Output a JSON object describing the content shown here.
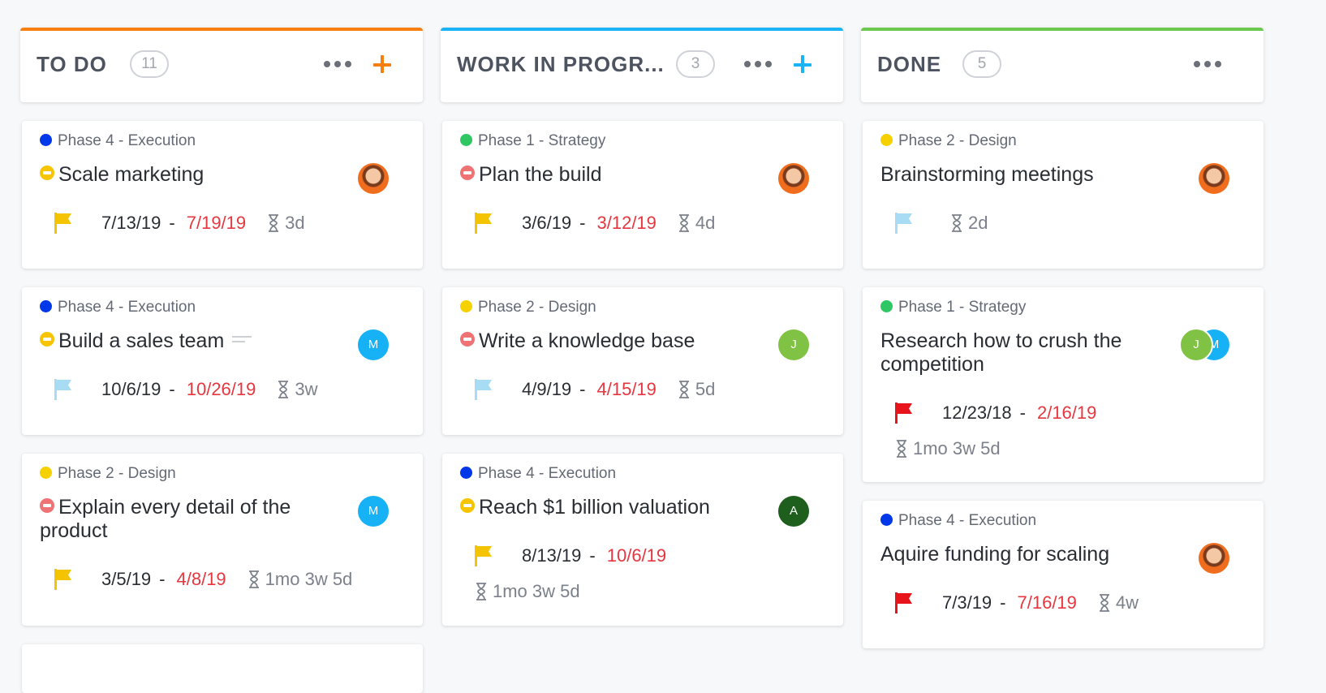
{
  "colors": {
    "todo_accent": "#f77f0f",
    "wip_accent": "#1ab3f5",
    "done_accent": "#6bc950",
    "overdue": "#e5373f"
  },
  "columns": [
    {
      "title": "TO DO",
      "count": "11",
      "accent": "#f77f0f",
      "has_add": true,
      "cards": [
        {
          "phase": "Phase 4 - Execution",
          "phase_color": "#0037e8",
          "status_color": "#f7c500",
          "title": "Scale marketing",
          "avatar": "photo",
          "flag_color": "#f4c402",
          "start": "7/13/19",
          "dash": "-",
          "due": "7/19/19",
          "estimate": "3d"
        },
        {
          "phase": "Phase 4 - Execution",
          "phase_color": "#0037e8",
          "status_color": "#f7c500",
          "title": "Build a sales team",
          "has_description": true,
          "avatar": "M",
          "avatar_color": "#17b2f5",
          "flag_color": "#a8dcf5",
          "start": "10/6/19",
          "dash": "-",
          "due": "10/26/19",
          "estimate": "3w"
        },
        {
          "phase": "Phase 2 - Design",
          "phase_color": "#f5d100",
          "status_color": "#ef7275",
          "title": "Explain every detail of the product",
          "avatar": "M",
          "avatar_color": "#17b2f5",
          "flag_color": "#f4c402",
          "start": "3/5/19",
          "dash": "-",
          "due": "4/8/19",
          "estimate": "1mo 3w 5d"
        }
      ]
    },
    {
      "title": "WORK IN PROGR...",
      "count": "3",
      "accent": "#1ab3f5",
      "has_add": true,
      "cards": [
        {
          "phase": "Phase 1 - Strategy",
          "phase_color": "#2fc764",
          "status_color": "#ef7275",
          "title": "Plan the build",
          "avatar": "photo",
          "flag_color": "#f4c402",
          "start": "3/6/19",
          "dash": "-",
          "due": "3/12/19",
          "estimate": "4d"
        },
        {
          "phase": "Phase 2 - Design",
          "phase_color": "#f5d100",
          "status_color": "#ef7275",
          "title": "Write a knowledge base",
          "avatar": "J",
          "avatar_color": "#7fc244",
          "flag_color": "#a8dcf5",
          "start": "4/9/19",
          "dash": "-",
          "due": "4/15/19",
          "estimate": "5d"
        },
        {
          "phase": "Phase 4 - Execution",
          "phase_color": "#0037e8",
          "status_color": "#f7c500",
          "title": "Reach $1 billion valuation",
          "avatar": "A",
          "avatar_color": "#1e5f1e",
          "flag_color": "#f4c402",
          "start": "8/13/19",
          "dash": "-",
          "due": "10/6/19",
          "estimate": "1mo 3w 5d"
        }
      ]
    },
    {
      "title": "DONE",
      "count": "5",
      "accent": "#6bc950",
      "has_add": false,
      "cards": [
        {
          "phase": "Phase 2 - Design",
          "phase_color": "#f5d100",
          "title": "Brainstorming meetings",
          "avatar": "photo",
          "flag_color": "#a8dcf5",
          "estimate": "2d"
        },
        {
          "phase": "Phase 1 - Strategy",
          "phase_color": "#2fc764",
          "title": "Research how to crush the competition",
          "avatar": "J",
          "avatar_color": "#7fc244",
          "avatar2": "M",
          "avatar2_color": "#17b2f5",
          "flag_color": "#e8141c",
          "start": "12/23/18",
          "dash": "-",
          "due": "2/16/19",
          "estimate": "1mo 3w 5d"
        },
        {
          "phase": "Phase 4 - Execution",
          "phase_color": "#0037e8",
          "title": "Aquire funding for scaling",
          "avatar": "photo",
          "flag_color": "#e8141c",
          "start": "7/3/19",
          "dash": "-",
          "due": "7/16/19",
          "estimate": "4w"
        }
      ]
    }
  ]
}
